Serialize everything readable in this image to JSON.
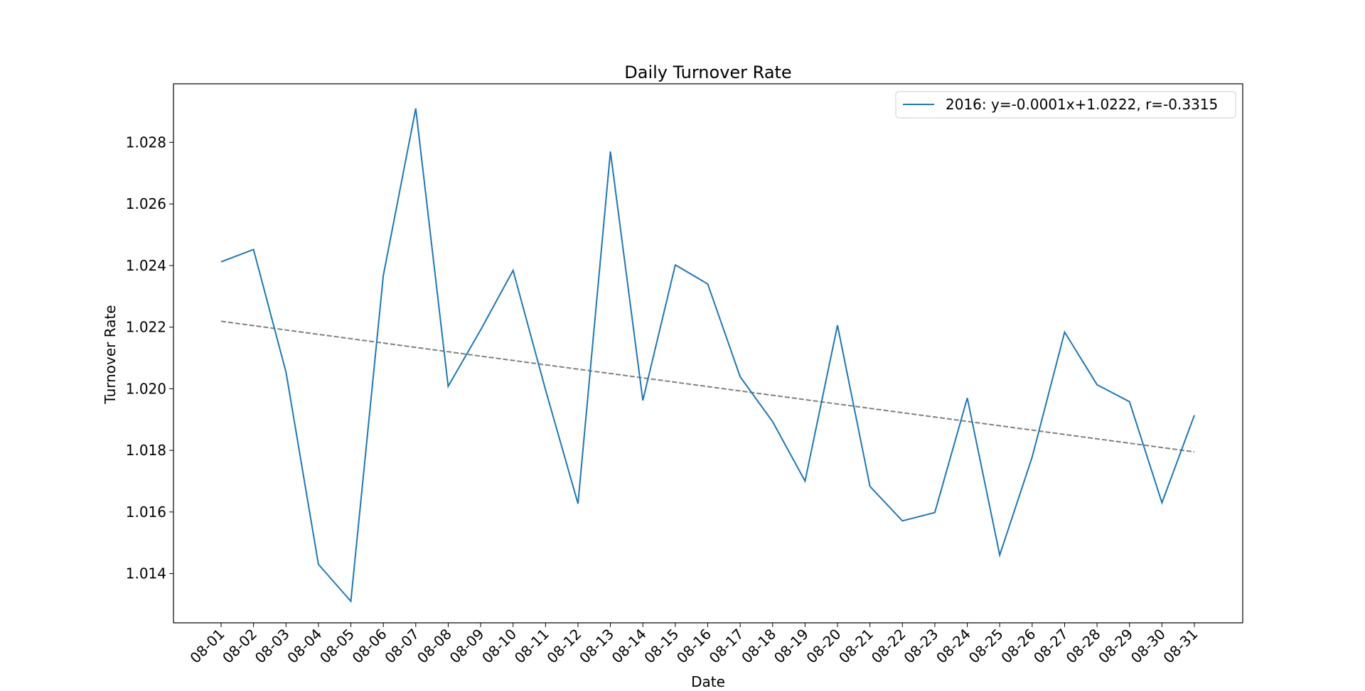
{
  "chart_data": {
    "type": "line",
    "title": "Daily Turnover Rate",
    "xlabel": "Date",
    "ylabel": "Turnover Rate",
    "categories": [
      "08-01",
      "08-02",
      "08-03",
      "08-04",
      "08-05",
      "08-06",
      "08-07",
      "08-08",
      "08-09",
      "08-10",
      "08-11",
      "08-12",
      "08-13",
      "08-14",
      "08-15",
      "08-16",
      "08-17",
      "08-18",
      "08-19",
      "08-20",
      "08-21",
      "08-22",
      "08-23",
      "08-24",
      "08-25",
      "08-26",
      "08-27",
      "08-28",
      "08-29",
      "08-30",
      "08-31"
    ],
    "yticks": [
      "1.014",
      "1.016",
      "1.018",
      "1.020",
      "1.022",
      "1.024",
      "1.026",
      "1.028"
    ],
    "ylim": [
      1.0124,
      1.0299
    ],
    "grid": false,
    "legend_position": "top-right",
    "series": [
      {
        "name": "2016: y=-0.0001x+1.0222, r=-0.3315",
        "color": "#1f77b4",
        "values": [
          1.02412,
          1.02452,
          1.02054,
          1.0143,
          1.0131,
          1.02368,
          1.0291,
          1.02008,
          1.02191,
          1.02384,
          1.01997,
          1.01627,
          1.0277,
          1.01962,
          1.02402,
          1.0234,
          1.02039,
          1.01893,
          1.017,
          1.02206,
          1.01683,
          1.01571,
          1.01598,
          1.0197,
          1.0146,
          1.01778,
          1.02184,
          1.02013,
          1.01958,
          1.0163,
          1.01914
        ]
      }
    ],
    "trendline": {
      "style": "dashed",
      "color": "#808080",
      "start": 1.02219,
      "end": 1.01795
    }
  }
}
